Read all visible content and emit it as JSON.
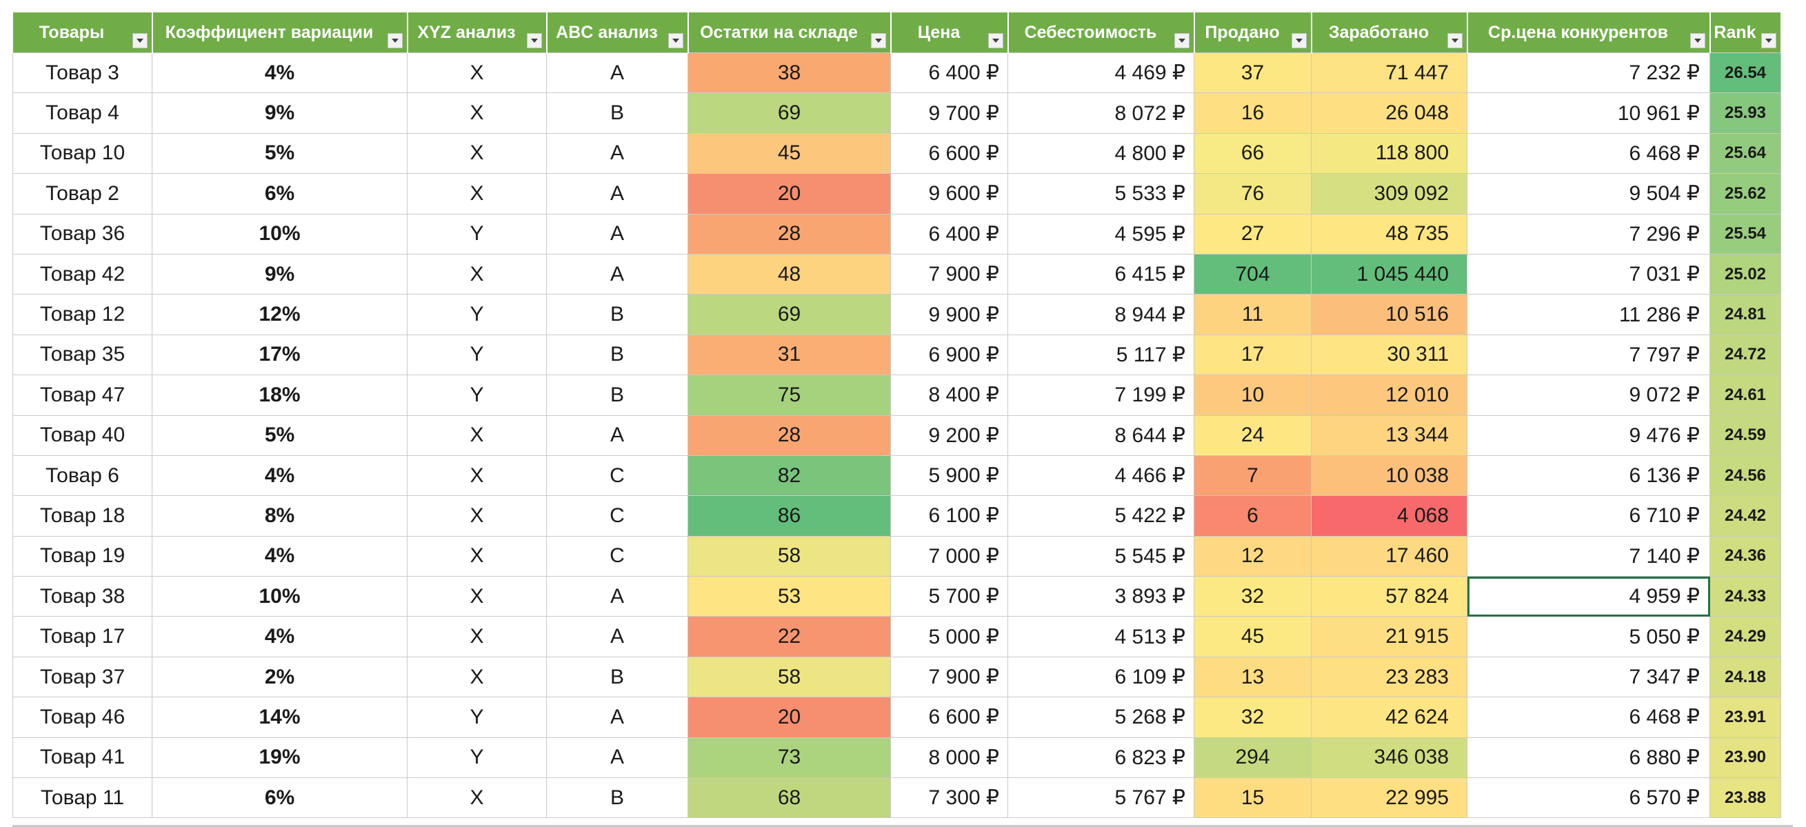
{
  "headers": [
    {
      "label": "Товары"
    },
    {
      "label": "Коэффициент вариации"
    },
    {
      "label": "XYZ анализ"
    },
    {
      "label": "ABC анализ"
    },
    {
      "label": "Остатки на складе"
    },
    {
      "label": "Цена"
    },
    {
      "label": "Себестоимость"
    },
    {
      "label": "Продано"
    },
    {
      "label": "Заработано"
    },
    {
      "label": "Ср.цена конкурентов"
    },
    {
      "label": "Rank"
    }
  ],
  "filter_icon": "dropdown-filter-icon",
  "colors": {
    "header_bg": "#70ad47",
    "scale_red": "#f8696b",
    "scale_yellow": "#ffeb84",
    "scale_green": "#63be7b",
    "selection_border": "#217346"
  },
  "rows": [
    {
      "name": "Товар 3",
      "cv": "4%",
      "xyz": "X",
      "abc": "A",
      "stock": "38",
      "price": "6 400 ₽",
      "cost": "4 469 ₽",
      "sold": "37",
      "earned": "71 447",
      "comp": "7 232 ₽",
      "rank": "26.54",
      "stock_color": "#f9a870",
      "sold_color": "#fde783",
      "earned_color": "#fde383",
      "rank_color": "#63be7b"
    },
    {
      "name": "Товар 4",
      "cv": "9%",
      "xyz": "X",
      "abc": "B",
      "stock": "69",
      "price": "9 700 ₽",
      "cost": "8 072 ₽",
      "sold": "16",
      "earned": "26 048",
      "comp": "10 961 ₽",
      "rank": "25.93",
      "stock_color": "#bbd77f",
      "sold_color": "#fee082",
      "earned_color": "#fee082",
      "rank_color": "#84c77d"
    },
    {
      "name": "Товар 10",
      "cv": "5%",
      "xyz": "X",
      "abc": "A",
      "stock": "45",
      "price": "6 600 ₽",
      "cost": "4 800 ₽",
      "sold": "66",
      "earned": "118 800",
      "comp": "6 468 ₽",
      "rank": "25.64",
      "stock_color": "#fdc67d",
      "sold_color": "#f8ea84",
      "earned_color": "#f4e883",
      "rank_color": "#93cb7e"
    },
    {
      "name": "Товар 2",
      "cv": "6%",
      "xyz": "X",
      "abc": "A",
      "stock": "20",
      "price": "9 600 ₽",
      "cost": "5 533 ₽",
      "sold": "76",
      "earned": "309 092",
      "comp": "9 504 ₽",
      "rank": "25.62",
      "stock_color": "#f68f70",
      "sold_color": "#f4e884",
      "earned_color": "#d6e082",
      "rank_color": "#95cc7e"
    },
    {
      "name": "Товар 36",
      "cv": "10%",
      "xyz": "Y",
      "abc": "A",
      "stock": "28",
      "price": "6 400 ₽",
      "cost": "4 595 ₽",
      "sold": "27",
      "earned": "48 735",
      "comp": "7 296 ₽",
      "rank": "25.54",
      "stock_color": "#f9a572",
      "sold_color": "#fee883",
      "earned_color": "#fee683",
      "rank_color": "#99cd7e"
    },
    {
      "name": "Товар 42",
      "cv": "9%",
      "xyz": "X",
      "abc": "A",
      "stock": "48",
      "price": "7 900 ₽",
      "cost": "6 415 ₽",
      "sold": "704",
      "earned": "1 045 440",
      "comp": "7 031 ₽",
      "rank": "25.02",
      "stock_color": "#fed380",
      "sold_color": "#63be7b",
      "earned_color": "#63be7b",
      "rank_color": "#b1d47f"
    },
    {
      "name": "Товар 12",
      "cv": "12%",
      "xyz": "Y",
      "abc": "B",
      "stock": "69",
      "price": "9 900 ₽",
      "cost": "8 944 ₽",
      "sold": "11",
      "earned": "10 516",
      "comp": "11 286 ₽",
      "rank": "24.81",
      "stock_color": "#bbd77f",
      "sold_color": "#fed380",
      "earned_color": "#fcbf7b",
      "rank_color": "#bbd77f"
    },
    {
      "name": "Товар 35",
      "cv": "17%",
      "xyz": "Y",
      "abc": "B",
      "stock": "31",
      "price": "6 900 ₽",
      "cost": "5 117 ₽",
      "sold": "17",
      "earned": "30 311",
      "comp": "7 797 ₽",
      "rank": "24.72",
      "stock_color": "#faae74",
      "sold_color": "#fee483",
      "earned_color": "#fee483",
      "rank_color": "#c0d880"
    },
    {
      "name": "Товар 47",
      "cv": "18%",
      "xyz": "Y",
      "abc": "B",
      "stock": "75",
      "price": "8 400 ₽",
      "cost": "7 199 ₽",
      "sold": "10",
      "earned": "12 010",
      "comp": "9 072 ₽",
      "rank": "24.61",
      "stock_color": "#a6d17d",
      "sold_color": "#fdc97e",
      "earned_color": "#fdc87d",
      "rank_color": "#c4d980"
    },
    {
      "name": "Товар 40",
      "cv": "5%",
      "xyz": "X",
      "abc": "A",
      "stock": "28",
      "price": "9 200 ₽",
      "cost": "8 644 ₽",
      "sold": "24",
      "earned": "13 344",
      "comp": "9 476 ₽",
      "rank": "24.59",
      "stock_color": "#f9a572",
      "sold_color": "#fee783",
      "earned_color": "#fed480",
      "rank_color": "#c5da80"
    },
    {
      "name": "Товар 6",
      "cv": "4%",
      "xyz": "X",
      "abc": "C",
      "stock": "82",
      "price": "5 900 ₽",
      "cost": "4 466 ₽",
      "sold": "7",
      "earned": "10 038",
      "comp": "6 136 ₽",
      "rank": "24.56",
      "stock_color": "#7ac47c",
      "sold_color": "#f9a171",
      "earned_color": "#fcc07b",
      "rank_color": "#c6da80"
    },
    {
      "name": "Товар 18",
      "cv": "8%",
      "xyz": "X",
      "abc": "C",
      "stock": "86",
      "price": "6 100 ₽",
      "cost": "5 422 ₽",
      "sold": "6",
      "earned": "4 068",
      "comp": "6 710 ₽",
      "rank": "24.42",
      "stock_color": "#63be7b",
      "sold_color": "#f8886e",
      "earned_color": "#f8696b",
      "rank_color": "#cddc81"
    },
    {
      "name": "Товар 19",
      "cv": "4%",
      "xyz": "X",
      "abc": "C",
      "stock": "58",
      "price": "7 000 ₽",
      "cost": "5 545 ₽",
      "sold": "12",
      "earned": "17 460",
      "comp": "7 140 ₽",
      "rank": "24.36",
      "stock_color": "#ede583",
      "sold_color": "#fed981",
      "earned_color": "#fed981",
      "rank_color": "#d0dd81"
    },
    {
      "name": "Товар 38",
      "cv": "10%",
      "xyz": "X",
      "abc": "A",
      "stock": "53",
      "price": "5 700 ₽",
      "cost": "3 893 ₽",
      "sold": "32",
      "earned": "57 824",
      "comp": "4 959 ₽",
      "rank": "24.33",
      "stock_color": "#fee483",
      "sold_color": "#fde983",
      "earned_color": "#fee783",
      "rank_color": "#d1dd81",
      "selected": true
    },
    {
      "name": "Товар 17",
      "cv": "4%",
      "xyz": "X",
      "abc": "A",
      "stock": "22",
      "price": "5 000 ₽",
      "cost": "4 513 ₽",
      "sold": "45",
      "earned": "21 915",
      "comp": "5 050 ₽",
      "rank": "24.29",
      "stock_color": "#f79570",
      "sold_color": "#fde983",
      "earned_color": "#fede82",
      "rank_color": "#d3de81"
    },
    {
      "name": "Товар 37",
      "cv": "2%",
      "xyz": "X",
      "abc": "B",
      "stock": "58",
      "price": "7 900 ₽",
      "cost": "6 109 ₽",
      "sold": "13",
      "earned": "23 283",
      "comp": "7 347 ₽",
      "rank": "24.18",
      "stock_color": "#ede583",
      "sold_color": "#fedc81",
      "earned_color": "#fedf82",
      "rank_color": "#d8df81"
    },
    {
      "name": "Товар 46",
      "cv": "14%",
      "xyz": "Y",
      "abc": "A",
      "stock": "20",
      "price": "6 600 ₽",
      "cost": "5 268 ₽",
      "sold": "32",
      "earned": "42 624",
      "comp": "6 468 ₽",
      "rank": "23.91",
      "stock_color": "#f68f70",
      "sold_color": "#fde983",
      "earned_color": "#fee583",
      "rank_color": "#e6e382"
    },
    {
      "name": "Товар 41",
      "cv": "19%",
      "xyz": "Y",
      "abc": "A",
      "stock": "73",
      "price": "8 000 ₽",
      "cost": "6 823 ₽",
      "sold": "294",
      "earned": "346 038",
      "comp": "6 880 ₽",
      "rank": "23.90",
      "stock_color": "#acd37e",
      "sold_color": "#c5da80",
      "earned_color": "#d0dd81",
      "rank_color": "#e6e382"
    },
    {
      "name": "Товар 11",
      "cv": "6%",
      "xyz": "X",
      "abc": "B",
      "stock": "68",
      "price": "7 300 ₽",
      "cost": "5 767 ₽",
      "sold": "15",
      "earned": "22 995",
      "comp": "6 570 ₽",
      "rank": "23.88",
      "stock_color": "#bfd880",
      "sold_color": "#fedd81",
      "earned_color": "#fedf82",
      "rank_color": "#e7e482"
    }
  ]
}
